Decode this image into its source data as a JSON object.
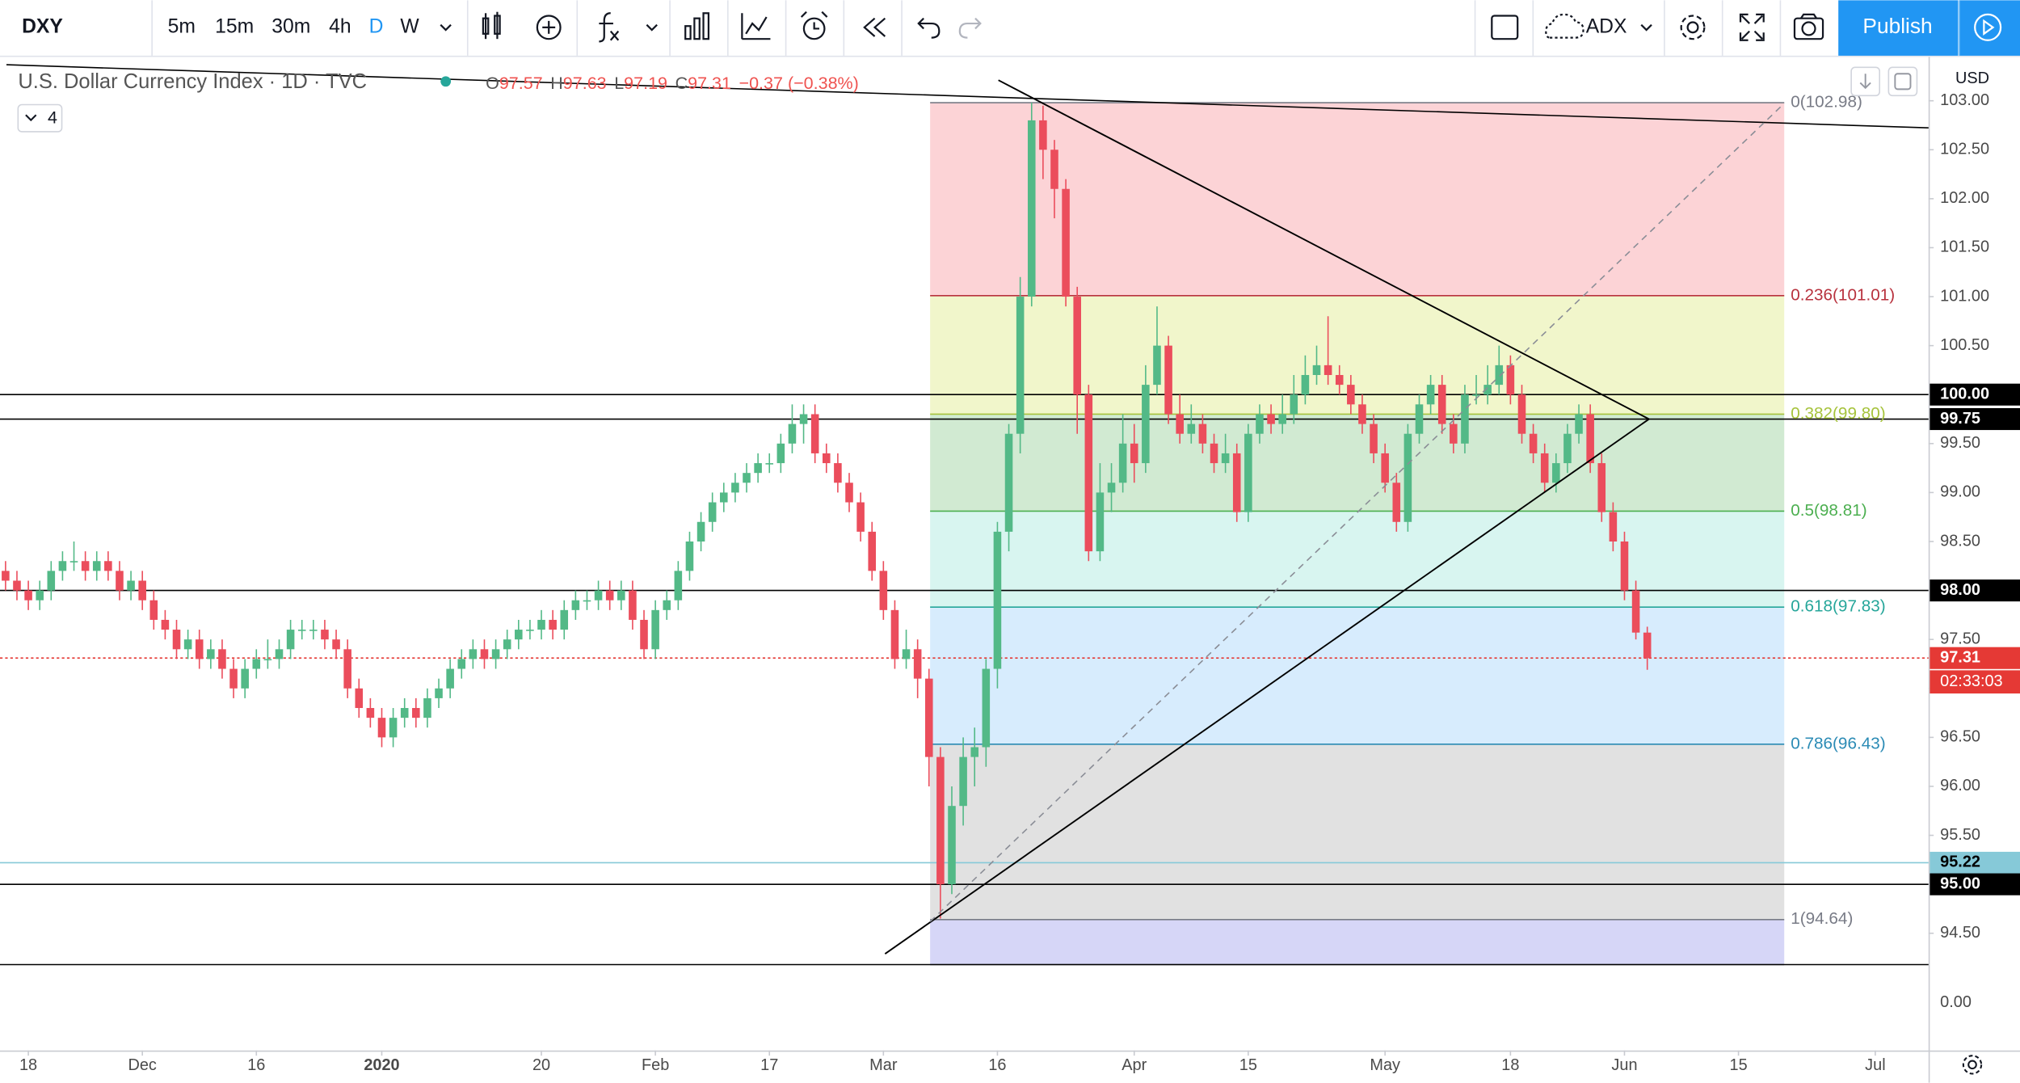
{
  "toolbar": {
    "symbol": "DXY",
    "intervals": [
      "5m",
      "15m",
      "30m",
      "4h",
      "D",
      "W"
    ],
    "template": "ADX",
    "publish": "Publish"
  },
  "chart_data": {
    "type": "candlestick",
    "title": "U.S. Dollar Currency Index · 1D · TVC",
    "ohlc_prefixes": [
      "O",
      "H",
      "L",
      "C"
    ],
    "change": "−0.37 (−0.38%)",
    "hidden_indicators": "4",
    "currency": "USD",
    "up_color": "#53b987",
    "down_color": "#eb4d5c",
    "xlim": [
      -0.486,
      168.67
    ],
    "xticks": [
      {
        "value": 2,
        "label": "18"
      },
      {
        "value": 12,
        "label": "Dec"
      },
      {
        "value": 22,
        "label": "16"
      },
      {
        "value": 33,
        "label": "2020"
      },
      {
        "value": 47,
        "label": "20"
      },
      {
        "value": 57,
        "label": "Feb"
      },
      {
        "value": 67,
        "label": "17"
      },
      {
        "value": 77,
        "label": "Mar"
      },
      {
        "value": 87,
        "label": "16"
      },
      {
        "value": 99,
        "label": "Apr"
      },
      {
        "value": 109,
        "label": "15"
      },
      {
        "value": 121,
        "label": "May"
      },
      {
        "value": 132,
        "label": "18"
      },
      {
        "value": 142,
        "label": "Jun"
      },
      {
        "value": 152,
        "label": "15"
      },
      {
        "value": 164,
        "label": "Jul"
      }
    ],
    "ylim": [
      93.632,
      103.447
    ],
    "yticks": [
      {
        "value": 103,
        "label": "103.00"
      },
      {
        "value": 102.5,
        "label": "102.50"
      },
      {
        "value": 102,
        "label": "102.00"
      },
      {
        "value": 101.5,
        "label": "101.50"
      },
      {
        "value": 101,
        "label": "101.00"
      },
      {
        "value": 100.5,
        "label": "100.50"
      },
      {
        "value": 100,
        "label": "100.00"
      },
      {
        "value": 99.5,
        "label": "99.50"
      },
      {
        "value": 99,
        "label": "99.00"
      },
      {
        "value": 98.5,
        "label": "98.50"
      },
      {
        "value": 98,
        "label": "98.00"
      },
      {
        "value": 97.5,
        "label": "97.50"
      },
      {
        "value": 97,
        "label": "97.00"
      },
      {
        "value": 96.5,
        "label": "96.50"
      },
      {
        "value": 96,
        "label": "96.00"
      },
      {
        "value": 95.5,
        "label": "95.50"
      },
      {
        "value": 95,
        "label": "95.00"
      },
      {
        "value": 94.5,
        "label": "94.50"
      }
    ],
    "grid": false,
    "indicator_pane": {
      "yticks": [
        {
          "value": 0,
          "label": "0.00"
        }
      ]
    },
    "candles": [
      [
        98.2,
        98.3,
        98.0,
        98.1
      ],
      [
        98.1,
        98.2,
        97.9,
        98.0
      ],
      [
        98.0,
        98.1,
        97.8,
        97.9
      ],
      [
        97.9,
        98.1,
        97.8,
        98.0
      ],
      [
        98.0,
        98.3,
        97.9,
        98.2
      ],
      [
        98.2,
        98.4,
        98.1,
        98.3
      ],
      [
        98.3,
        98.5,
        98.2,
        98.3
      ],
      [
        98.3,
        98.4,
        98.1,
        98.2
      ],
      [
        98.2,
        98.4,
        98.1,
        98.3
      ],
      [
        98.3,
        98.4,
        98.1,
        98.2
      ],
      [
        98.2,
        98.3,
        97.9,
        98.0
      ],
      [
        98.0,
        98.2,
        97.9,
        98.1
      ],
      [
        98.1,
        98.2,
        97.8,
        97.9
      ],
      [
        97.9,
        98.0,
        97.6,
        97.7
      ],
      [
        97.7,
        97.8,
        97.5,
        97.6
      ],
      [
        97.6,
        97.7,
        97.3,
        97.4
      ],
      [
        97.4,
        97.6,
        97.3,
        97.5
      ],
      [
        97.5,
        97.6,
        97.2,
        97.3
      ],
      [
        97.3,
        97.5,
        97.2,
        97.4
      ],
      [
        97.4,
        97.5,
        97.1,
        97.2
      ],
      [
        97.2,
        97.3,
        96.9,
        97.0
      ],
      [
        97.0,
        97.3,
        96.9,
        97.2
      ],
      [
        97.2,
        97.4,
        97.1,
        97.3
      ],
      [
        97.3,
        97.5,
        97.2,
        97.3
      ],
      [
        97.3,
        97.5,
        97.2,
        97.4
      ],
      [
        97.4,
        97.7,
        97.3,
        97.6
      ],
      [
        97.6,
        97.7,
        97.5,
        97.6
      ],
      [
        97.6,
        97.7,
        97.5,
        97.6
      ],
      [
        97.6,
        97.7,
        97.4,
        97.5
      ],
      [
        97.5,
        97.6,
        97.3,
        97.4
      ],
      [
        97.4,
        97.5,
        96.9,
        97.0
      ],
      [
        97.0,
        97.1,
        96.7,
        96.8
      ],
      [
        96.8,
        96.9,
        96.6,
        96.7
      ],
      [
        96.7,
        96.8,
        96.4,
        96.5
      ],
      [
        96.5,
        96.8,
        96.4,
        96.7
      ],
      [
        96.7,
        96.9,
        96.6,
        96.8
      ],
      [
        96.8,
        96.9,
        96.6,
        96.7
      ],
      [
        96.7,
        97.0,
        96.6,
        96.9
      ],
      [
        96.9,
        97.1,
        96.8,
        97.0
      ],
      [
        97.0,
        97.3,
        96.9,
        97.2
      ],
      [
        97.2,
        97.4,
        97.1,
        97.3
      ],
      [
        97.3,
        97.5,
        97.2,
        97.4
      ],
      [
        97.4,
        97.5,
        97.2,
        97.3
      ],
      [
        97.3,
        97.5,
        97.2,
        97.4
      ],
      [
        97.4,
        97.6,
        97.3,
        97.5
      ],
      [
        97.5,
        97.7,
        97.4,
        97.6
      ],
      [
        97.6,
        97.7,
        97.5,
        97.6
      ],
      [
        97.6,
        97.8,
        97.5,
        97.7
      ],
      [
        97.7,
        97.8,
        97.5,
        97.6
      ],
      [
        97.6,
        97.9,
        97.5,
        97.8
      ],
      [
        97.8,
        98.0,
        97.7,
        97.9
      ],
      [
        97.9,
        98.0,
        97.8,
        97.9
      ],
      [
        97.9,
        98.1,
        97.8,
        98.0
      ],
      [
        98.0,
        98.1,
        97.8,
        97.9
      ],
      [
        97.9,
        98.1,
        97.8,
        98.0
      ],
      [
        98.0,
        98.1,
        97.6,
        97.7
      ],
      [
        97.7,
        97.8,
        97.3,
        97.4
      ],
      [
        97.4,
        97.9,
        97.3,
        97.8
      ],
      [
        97.8,
        98.0,
        97.7,
        97.9
      ],
      [
        97.9,
        98.3,
        97.8,
        98.2
      ],
      [
        98.2,
        98.6,
        98.1,
        98.5
      ],
      [
        98.5,
        98.8,
        98.4,
        98.7
      ],
      [
        98.7,
        99.0,
        98.6,
        98.9
      ],
      [
        98.9,
        99.1,
        98.8,
        99.0
      ],
      [
        99.0,
        99.2,
        98.9,
        99.1
      ],
      [
        99.1,
        99.3,
        99.0,
        99.2
      ],
      [
        99.2,
        99.4,
        99.1,
        99.3
      ],
      [
        99.3,
        99.4,
        99.2,
        99.3
      ],
      [
        99.3,
        99.6,
        99.2,
        99.5
      ],
      [
        99.5,
        99.9,
        99.4,
        99.7
      ],
      [
        99.7,
        99.9,
        99.5,
        99.8
      ],
      [
        99.8,
        99.9,
        99.3,
        99.4
      ],
      [
        99.4,
        99.5,
        99.2,
        99.3
      ],
      [
        99.3,
        99.4,
        99.0,
        99.1
      ],
      [
        99.1,
        99.2,
        98.8,
        98.9
      ],
      [
        98.9,
        99.0,
        98.5,
        98.6
      ],
      [
        98.6,
        98.7,
        98.1,
        98.2
      ],
      [
        98.2,
        98.3,
        97.7,
        97.8
      ],
      [
        97.8,
        97.9,
        97.2,
        97.3
      ],
      [
        97.3,
        97.6,
        97.2,
        97.4
      ],
      [
        97.4,
        97.5,
        96.9,
        97.1
      ],
      [
        97.1,
        97.2,
        96.0,
        96.3
      ],
      [
        96.3,
        96.4,
        94.65,
        95.0
      ],
      [
        95.0,
        96.0,
        94.9,
        95.8
      ],
      [
        95.8,
        96.5,
        95.6,
        96.3
      ],
      [
        96.3,
        96.6,
        96.0,
        96.4
      ],
      [
        96.4,
        97.3,
        96.2,
        97.2
      ],
      [
        97.2,
        98.7,
        97.0,
        98.6
      ],
      [
        98.6,
        99.7,
        98.4,
        99.6
      ],
      [
        99.6,
        101.2,
        99.4,
        101.0
      ],
      [
        101.0,
        102.98,
        100.9,
        102.8
      ],
      [
        102.8,
        102.95,
        102.2,
        102.5
      ],
      [
        102.5,
        102.6,
        101.8,
        102.1
      ],
      [
        102.1,
        102.2,
        100.9,
        101.0
      ],
      [
        101.0,
        101.1,
        99.6,
        100.0
      ],
      [
        100.0,
        100.1,
        98.3,
        98.4
      ],
      [
        98.4,
        99.3,
        98.3,
        99.0
      ],
      [
        99.0,
        99.3,
        98.8,
        99.1
      ],
      [
        99.1,
        99.8,
        99.0,
        99.5
      ],
      [
        99.5,
        99.7,
        99.1,
        99.3
      ],
      [
        99.3,
        100.3,
        99.2,
        100.1
      ],
      [
        100.1,
        100.9,
        100.0,
        100.5
      ],
      [
        100.5,
        100.6,
        99.7,
        99.8
      ],
      [
        99.8,
        100.0,
        99.5,
        99.6
      ],
      [
        99.6,
        99.9,
        99.5,
        99.7
      ],
      [
        99.7,
        99.8,
        99.4,
        99.5
      ],
      [
        99.5,
        99.6,
        99.2,
        99.3
      ],
      [
        99.3,
        99.6,
        99.2,
        99.4
      ],
      [
        99.4,
        99.5,
        98.7,
        98.8
      ],
      [
        98.8,
        99.7,
        98.7,
        99.6
      ],
      [
        99.6,
        99.9,
        99.5,
        99.8
      ],
      [
        99.8,
        99.9,
        99.6,
        99.7
      ],
      [
        99.7,
        100.0,
        99.6,
        99.8
      ],
      [
        99.8,
        100.2,
        99.7,
        100.0
      ],
      [
        100.0,
        100.4,
        99.9,
        100.2
      ],
      [
        100.2,
        100.5,
        100.1,
        100.3
      ],
      [
        100.3,
        100.8,
        100.1,
        100.2
      ],
      [
        100.2,
        100.3,
        100.0,
        100.1
      ],
      [
        100.1,
        100.2,
        99.8,
        99.9
      ],
      [
        99.9,
        100.0,
        99.6,
        99.7
      ],
      [
        99.7,
        99.8,
        99.3,
        99.4
      ],
      [
        99.4,
        99.5,
        99.0,
        99.1
      ],
      [
        99.1,
        99.2,
        98.6,
        98.7
      ],
      [
        98.7,
        99.7,
        98.6,
        99.6
      ],
      [
        99.6,
        100.0,
        99.5,
        99.9
      ],
      [
        99.9,
        100.2,
        99.8,
        100.1
      ],
      [
        100.1,
        100.2,
        99.6,
        99.7
      ],
      [
        99.7,
        99.8,
        99.4,
        99.5
      ],
      [
        99.5,
        100.1,
        99.4,
        100.0
      ],
      [
        100.0,
        100.2,
        99.9,
        100.0
      ],
      [
        100.0,
        100.3,
        99.9,
        100.1
      ],
      [
        100.1,
        100.5,
        100.0,
        100.3
      ],
      [
        100.3,
        100.4,
        99.9,
        100.0
      ],
      [
        100.0,
        100.1,
        99.5,
        99.6
      ],
      [
        99.6,
        99.7,
        99.3,
        99.4
      ],
      [
        99.4,
        99.5,
        99.0,
        99.1
      ],
      [
        99.1,
        99.4,
        99.0,
        99.3
      ],
      [
        99.3,
        99.7,
        99.2,
        99.6
      ],
      [
        99.6,
        99.9,
        99.5,
        99.8
      ],
      [
        99.8,
        99.9,
        99.2,
        99.3
      ],
      [
        99.3,
        99.4,
        98.7,
        98.8
      ],
      [
        98.8,
        98.9,
        98.4,
        98.5
      ],
      [
        98.5,
        98.6,
        97.9,
        98.0
      ],
      [
        98.0,
        98.1,
        97.5,
        97.57
      ],
      [
        97.57,
        97.63,
        97.19,
        97.31
      ]
    ],
    "fib_levels": [
      {
        "label": "0(102.98)",
        "value": 102.98,
        "color": "#787b86",
        "fill": "rgba(242,54,69,0.22)"
      },
      {
        "label": "0.236(101.01)",
        "value": 101.01,
        "color": "#b8323e",
        "fill": "rgba(205,224,70,0.28)"
      },
      {
        "label": "0.382(99.80)",
        "value": 99.8,
        "color": "#a6c33c",
        "fill": "rgba(76,175,80,0.26)"
      },
      {
        "label": "0.5(98.81)",
        "value": 98.81,
        "color": "#4caf50",
        "fill": "rgba(38,200,170,0.18)"
      },
      {
        "label": "0.618(97.83)",
        "value": 97.83,
        "color": "#26a69a",
        "fill": "rgba(33,150,243,0.18)"
      },
      {
        "label": "0.786(96.43)",
        "value": 96.43,
        "color": "#2b8bb5",
        "fill": "rgba(140,140,140,0.26)"
      },
      {
        "label": "1(94.64)",
        "value": 94.64,
        "color": "#787b86",
        "fill": "rgba(90,90,225,0.25)"
      },
      {
        "label": null,
        "value": 94.18,
        "color": "#787b86"
      }
    ],
    "hlines": [
      {
        "value": 100,
        "label": "100.00",
        "color": "#000000",
        "text_color": "#ffffff"
      },
      {
        "value": 99.75,
        "label": "99.75",
        "color": "#000000",
        "text_color": "#ffffff"
      },
      {
        "value": 98,
        "label": "98.00",
        "color": "#000000",
        "text_color": "#ffffff"
      },
      {
        "value": 95.22,
        "label": "95.22",
        "color": "#86c9d8",
        "text_color": "#000000"
      },
      {
        "value": 95,
        "label": "95.00",
        "color": "#000000",
        "text_color": "#ffffff"
      },
      {
        "value": 94.18,
        "label": null,
        "color": "#000000"
      }
    ],
    "last_price": {
      "value": 97.31,
      "label": "97.31",
      "countdown": "02:33:03",
      "color": "#e53935"
    }
  }
}
